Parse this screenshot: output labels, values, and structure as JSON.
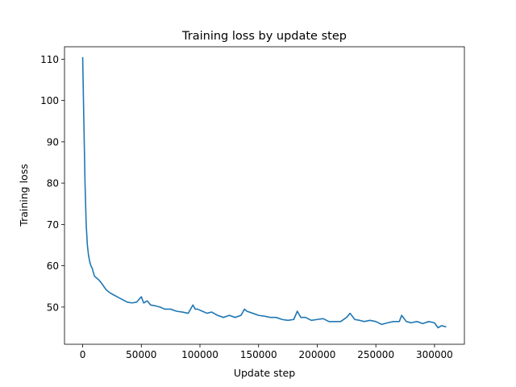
{
  "chart_data": {
    "type": "line",
    "title": "Training loss by update step",
    "xlabel": "Update step",
    "ylabel": "Training loss",
    "xlim": [
      -15500,
      325500
    ],
    "ylim": [
      41,
      113
    ],
    "xticks": [
      0,
      50000,
      100000,
      150000,
      200000,
      250000,
      300000
    ],
    "yticks": [
      50,
      60,
      70,
      80,
      90,
      100,
      110
    ],
    "grid": false,
    "legend": "none",
    "colors": {
      "series": "#1f77b4",
      "axes": "#000000"
    },
    "series": [
      {
        "x": [
          0,
          1000,
          2000,
          3000,
          4000,
          5000,
          6000,
          7000,
          8000,
          9000,
          10000,
          12000,
          14000,
          16000,
          18000,
          20000,
          23000,
          26000,
          30000,
          34000,
          38000,
          42000,
          46000,
          50000,
          52000,
          55000,
          58000,
          62000,
          66000,
          70000,
          75000,
          80000,
          85000,
          90000,
          94000,
          96000,
          98000,
          102000,
          106000,
          110000,
          115000,
          120000,
          125000,
          130000,
          135000,
          138000,
          140000,
          145000,
          150000,
          155000,
          160000,
          165000,
          170000,
          175000,
          180000,
          183000,
          186000,
          190000,
          195000,
          200000,
          205000,
          210000,
          215000,
          220000,
          225000,
          228000,
          232000,
          236000,
          240000,
          245000,
          250000,
          255000,
          260000,
          265000,
          270000,
          272000,
          276000,
          280000,
          285000,
          290000,
          295000,
          300000,
          303000,
          306000,
          310000
        ],
        "y": [
          110.5,
          95,
          80,
          70,
          65,
          62.5,
          61,
          60,
          59.5,
          58.5,
          57.5,
          57,
          56.5,
          55.8,
          55,
          54.2,
          53.5,
          53,
          52.4,
          51.8,
          51.2,
          51,
          51.2,
          52.5,
          51,
          51.5,
          50.5,
          50.3,
          50,
          49.5,
          49.5,
          49,
          48.8,
          48.5,
          50.5,
          49.5,
          49.5,
          49,
          48.5,
          48.8,
          48,
          47.5,
          48,
          47.5,
          48,
          49.5,
          49,
          48.5,
          48,
          47.8,
          47.5,
          47.5,
          47,
          46.8,
          47,
          49,
          47.5,
          47.5,
          46.8,
          47,
          47.2,
          46.5,
          46.5,
          46.5,
          47.5,
          48.5,
          47,
          46.8,
          46.5,
          46.8,
          46.5,
          45.8,
          46.2,
          46.5,
          46.5,
          48,
          46.5,
          46.2,
          46.5,
          46,
          46.5,
          46.2,
          45,
          45.5,
          45.2
        ]
      }
    ]
  }
}
